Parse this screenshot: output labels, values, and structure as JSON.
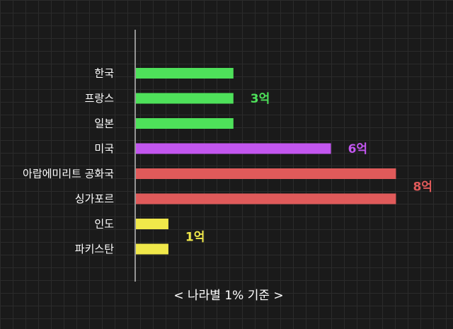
{
  "chart_data": {
    "type": "bar",
    "orientation": "horizontal",
    "categories": [
      "한국",
      "프랑스",
      "일본",
      "미국",
      "아랍에미리트 공화국",
      "싱가포르",
      "인도",
      "파키스탄"
    ],
    "values": [
      3,
      3,
      3,
      6,
      8,
      8,
      1,
      1
    ],
    "unit": "억",
    "group_labels": [
      {
        "text": "3억",
        "value": 3,
        "rows": [
          0,
          1,
          2
        ],
        "color": "#4ee15a"
      },
      {
        "text": "6억",
        "value": 6,
        "rows": [
          3
        ],
        "color": "#c356f0"
      },
      {
        "text": "8억",
        "value": 8,
        "rows": [
          4,
          5
        ],
        "color": "#e05a5a"
      },
      {
        "text": "1억",
        "value": 1,
        "rows": [
          6,
          7
        ],
        "color": "#f0e84a"
      }
    ],
    "bar_colors": [
      "#4ee15a",
      "#4ee15a",
      "#4ee15a",
      "#c356f0",
      "#e05a5a",
      "#e05a5a",
      "#f0e84a",
      "#f0e84a"
    ],
    "caption": "< 나라별 1% 기준 >",
    "title": "",
    "xlabel": "",
    "ylabel": "",
    "xlim": [
      0,
      8.6
    ],
    "grid": true,
    "legend": "none",
    "background": "#1a1a1a"
  }
}
